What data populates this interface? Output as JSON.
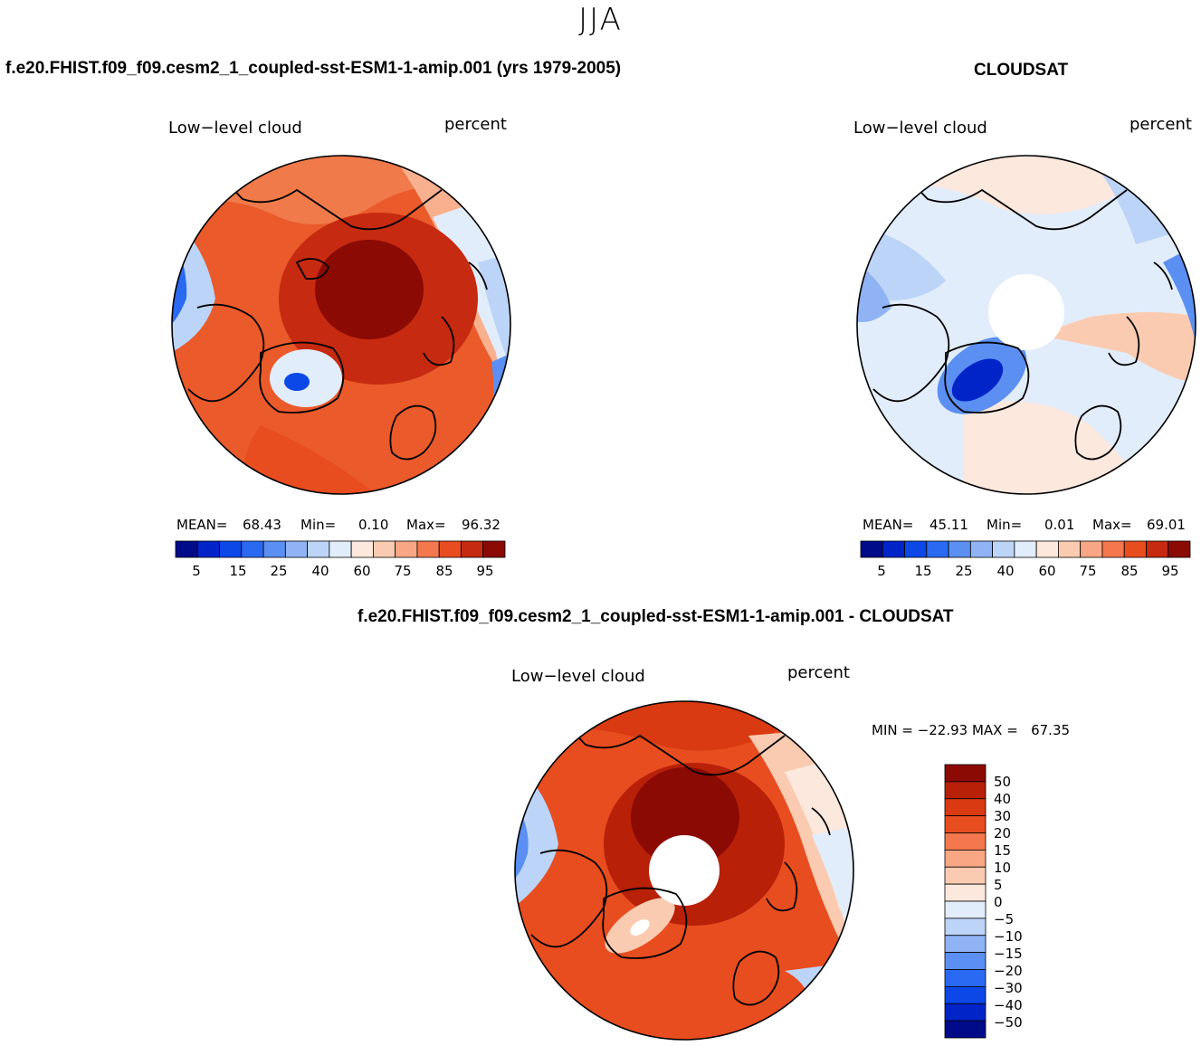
{
  "figure": {
    "season": "JJA",
    "colors": {
      "scale_abs": [
        "#000b8a",
        "#0024c8",
        "#0c48e8",
        "#2a6af2",
        "#5b8ff2",
        "#8fb3f4",
        "#bcd4f7",
        "#e2edfb",
        "#fde8dd",
        "#fbcbb1",
        "#f8a683",
        "#f4774d",
        "#e84d20",
        "#c62a10",
        "#8b0a03"
      ],
      "scale_diff": [
        "#000b8a",
        "#0024c8",
        "#0c48e8",
        "#2a6af2",
        "#5b8ff2",
        "#8fb3f4",
        "#bcd4f7",
        "#e2edfb",
        "#fde8dd",
        "#fbcbb1",
        "#f8a683",
        "#f4774d",
        "#e84d20",
        "#d93a12",
        "#b82008",
        "#8b0a03"
      ]
    },
    "panels": {
      "model": {
        "title": "f.e20.FHIST.f09_f09.cesm2_1_coupled-sst-ESM1-1-amip.001 (yrs 1979-2005)",
        "variable": "Low−level cloud",
        "units": "percent",
        "stats": {
          "mean_label": "MEAN=",
          "mean": "68.43",
          "min_label": "Min=",
          "min": "0.10",
          "max_label": "Max=",
          "max": "96.32"
        },
        "colorbar_ticks": [
          "5",
          "15",
          "25",
          "40",
          "60",
          "75",
          "85",
          "95"
        ]
      },
      "obs": {
        "title": "CLOUDSAT",
        "variable": "Low−level cloud",
        "units": "percent",
        "stats": {
          "mean_label": "MEAN=",
          "mean": "45.11",
          "min_label": "Min=",
          "min": "0.01",
          "max_label": "Max=",
          "max": "69.01"
        },
        "colorbar_ticks": [
          "5",
          "15",
          "25",
          "40",
          "60",
          "75",
          "85",
          "95"
        ]
      },
      "diff": {
        "title": "f.e20.FHIST.f09_f09.cesm2_1_coupled-sst-ESM1-1-amip.001 - CLOUDSAT",
        "variable": "Low−level cloud",
        "units": "percent",
        "minmax": "MIN = −22.93 MAX =   67.35",
        "colorbar_ticks": [
          "50",
          "40",
          "30",
          "20",
          "15",
          "10",
          "5",
          "0",
          "−5",
          "−10",
          "−15",
          "−20",
          "−30",
          "−40",
          "−50"
        ]
      }
    }
  }
}
